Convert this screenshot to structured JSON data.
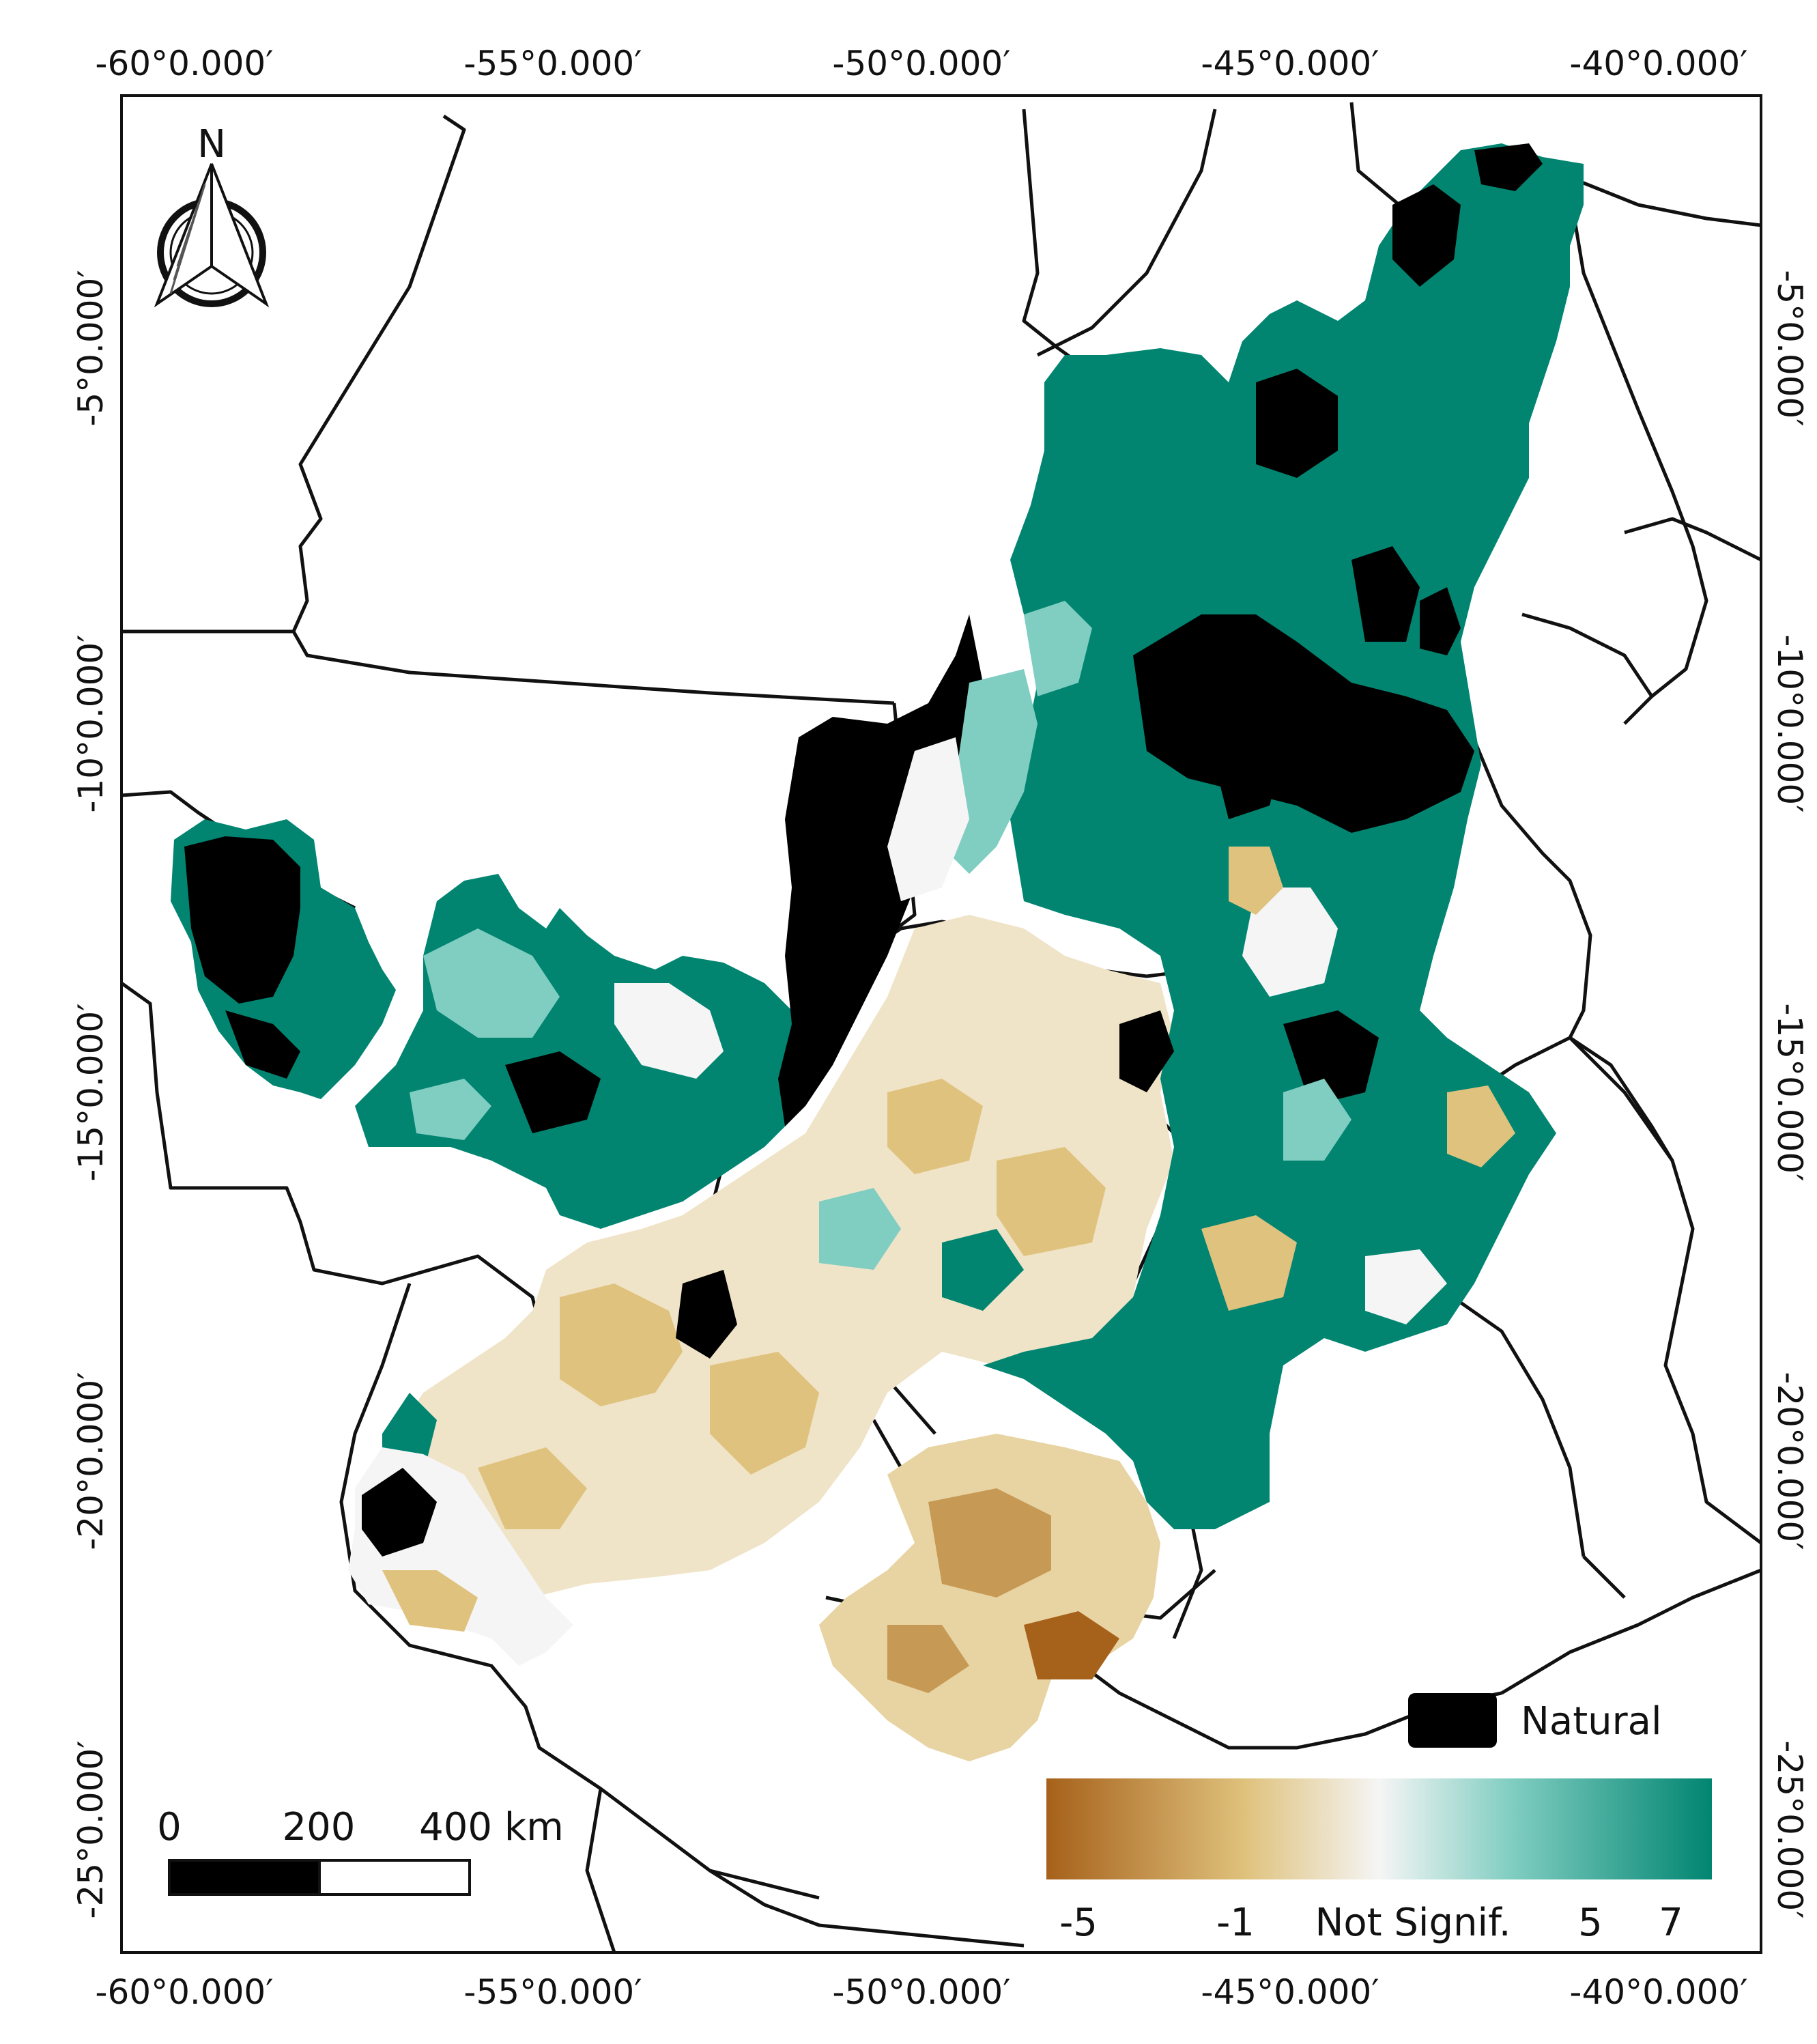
{
  "map": {
    "lon_ticks": [
      "-60°0.000′",
      "-55°0.000′",
      "-50°0.000′",
      "-45°0.000′",
      "-40°0.000′"
    ],
    "lat_ticks_left": [
      "-5°0.000′",
      "-10°0.000′",
      "-15°0.000′",
      "-20°0.000′",
      "-25°0.000′"
    ],
    "lat_ticks_right": [
      "-5°0.000′",
      "-10°0.000′",
      "-15°0.000′",
      "-20°0.000′",
      "-25°0.000′"
    ],
    "north_label": "N",
    "scale_labels": [
      "0",
      "200",
      "400 km"
    ],
    "legend": {
      "natural_label": "Natural",
      "natural_color": "#000000",
      "gradient_colors": [
        "#a6611a",
        "#dfc27d",
        "#f5f5f5",
        "#80cdc1",
        "#018571"
      ],
      "gradient_labels": [
        "-5",
        "-1",
        "Not Signif.",
        "5",
        "7"
      ]
    },
    "colors": {
      "decrease": "#a6611a",
      "slight_decrease": "#dfc27d",
      "not_significant": "#f5f5f5",
      "increase": "#80cdc1",
      "strong_increase": "#018571",
      "natural": "#000000"
    }
  }
}
